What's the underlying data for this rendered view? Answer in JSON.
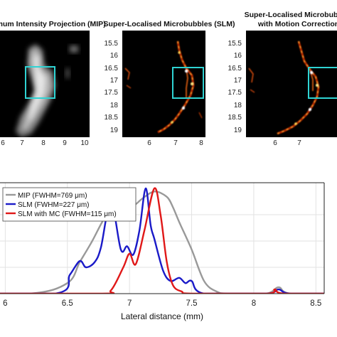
{
  "panels": [
    {
      "title_lines": [
        "Maximum Intensity Projection (MIP)"
      ],
      "x_ticks": [
        "6",
        "7",
        "8",
        "9",
        "10"
      ],
      "y_ticks": []
    },
    {
      "title_lines": [
        "Super-Localised Microbubbles (SLM)"
      ],
      "x_ticks": [
        "6",
        "7",
        "8"
      ],
      "y_ticks": [
        "15.5",
        "16",
        "16.5",
        "17",
        "17.5",
        "18",
        "18.5",
        "19"
      ]
    },
    {
      "title_lines": [
        "Super-Localised Microbubbles",
        "with Motion Correction"
      ],
      "x_ticks": [
        "6",
        "7"
      ],
      "y_ticks": [
        "15.5",
        "16",
        "16.5",
        "17",
        "17.5",
        "18",
        "18.5",
        "19"
      ]
    }
  ],
  "colors": {
    "roi_box": "#2fd3d3",
    "mip": "#999999",
    "slm": "#1a1ac8",
    "slm_mc": "#e01818"
  },
  "chart_data": {
    "type": "line",
    "title": "",
    "xlabel": "Lateral distance (mm)",
    "ylabel": "",
    "xlim": [
      5.5,
      8.75
    ],
    "ylim": [
      0,
      1.05
    ],
    "x_ticks": [
      "6",
      "6.5",
      "7",
      "7.5",
      "8",
      "8.5"
    ],
    "grid": true,
    "legend_position": "top-left",
    "series": [
      {
        "name": "MIP (FWHM=769 μm)",
        "x": [
          5.5,
          6.2,
          6.5,
          6.6,
          6.7,
          6.8,
          6.9,
          6.95,
          7.0,
          7.05,
          7.1,
          7.2,
          7.3,
          7.35,
          7.4,
          7.5,
          7.6,
          7.7,
          7.8,
          8.1,
          8.2,
          8.3,
          8.75
        ],
        "y": [
          0,
          0,
          0.1,
          0.3,
          0.5,
          0.72,
          0.85,
          0.88,
          0.83,
          0.85,
          0.9,
          0.97,
          0.92,
          0.82,
          0.68,
          0.42,
          0.12,
          0.02,
          0,
          0,
          0.06,
          0,
          0
        ]
      },
      {
        "name": "SLM (FWHM=227 μm)",
        "x": [
          5.5,
          6.4,
          6.52,
          6.6,
          6.65,
          6.72,
          6.77,
          6.85,
          6.93,
          6.98,
          7.03,
          7.08,
          7.13,
          7.17,
          7.2,
          7.27,
          7.33,
          7.4,
          7.45,
          7.5,
          7.6,
          8.1,
          8.2,
          8.3,
          8.75
        ],
        "y": [
          0,
          0,
          0.18,
          0.31,
          0.25,
          0.3,
          0.44,
          0.87,
          0.42,
          0.45,
          0.37,
          0.6,
          1.0,
          0.65,
          0.52,
          0.22,
          0.12,
          0.15,
          0.1,
          0.12,
          0,
          0,
          0.04,
          0,
          0
        ]
      },
      {
        "name": "SLM with MC (FWHM=115 μm)",
        "x": [
          5.5,
          6.75,
          6.85,
          6.95,
          7.0,
          7.05,
          7.12,
          7.2,
          7.25,
          7.3,
          7.35,
          7.42,
          7.5,
          8.1,
          8.17,
          8.25,
          8.75
        ],
        "y": [
          0,
          0,
          0.03,
          0.25,
          0.38,
          0.28,
          0.6,
          1.0,
          0.75,
          0.3,
          0.08,
          0.02,
          0,
          0,
          0.04,
          0,
          0
        ]
      }
    ]
  }
}
